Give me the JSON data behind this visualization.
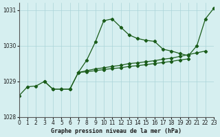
{
  "title": "Graphe pression niveau de la mer (hPa)",
  "bg_color": "#d6eff0",
  "grid_color": "#aad4d8",
  "line_color": "#1a5c1a",
  "xlim": [
    0,
    23
  ],
  "ylim": [
    1028,
    1031.2
  ],
  "yticks": [
    1028,
    1029,
    1030,
    1031
  ],
  "xticks": [
    0,
    1,
    2,
    3,
    4,
    5,
    6,
    7,
    8,
    9,
    10,
    11,
    12,
    13,
    14,
    15,
    16,
    17,
    18,
    19,
    20,
    21,
    22,
    23
  ],
  "line1": [
    1028.6,
    1028.85,
    1028.87,
    1029.0,
    1028.78,
    1028.78,
    1028.78,
    1029.25,
    1029.6,
    1030.1,
    1030.7,
    1030.75,
    1030.52,
    1030.3,
    1030.2,
    1030.15,
    1030.12,
    1029.9,
    1029.85,
    1029.78,
    1029.72,
    1030.0,
    1030.75,
    1031.05
  ],
  "line2": [
    null,
    null,
    null,
    1029.0,
    1028.78,
    1028.78,
    1028.78,
    1029.25,
    null,
    null,
    null,
    null,
    null,
    null,
    null,
    null,
    null,
    null,
    null,
    null,
    null,
    null,
    null,
    null
  ],
  "line3": [
    null,
    null,
    null,
    null,
    null,
    null,
    null,
    1029.25,
    1029.3,
    1029.35,
    1029.38,
    1029.42,
    1029.45,
    1029.5,
    1029.52,
    1029.55,
    1029.58,
    1029.62,
    1029.65,
    1029.7,
    1029.75,
    1029.8,
    1029.85,
    null
  ],
  "line4": [
    null,
    null,
    null,
    null,
    null,
    null,
    null,
    1029.25,
    1029.27,
    1029.3,
    1029.33,
    1029.36,
    1029.38,
    1029.42,
    1029.44,
    1029.47,
    1029.5,
    1029.53,
    1029.56,
    1029.6,
    1029.63,
    null,
    null,
    null
  ]
}
